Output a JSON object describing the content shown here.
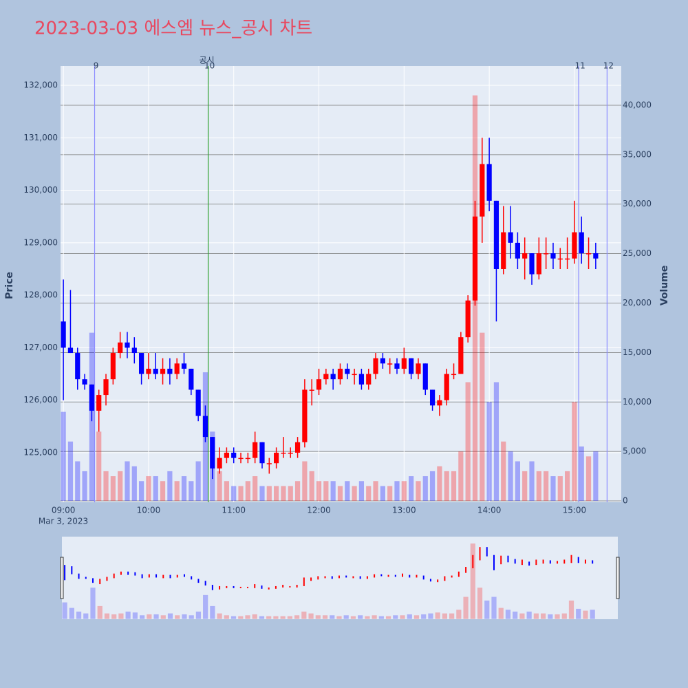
{
  "chart_data": {
    "type": "candlestick",
    "title": "2023-03-03 에스엠 뉴스_공시 차트",
    "y_label": "Price",
    "y2_label": "Volume",
    "date_label": "Mar 3, 2023",
    "up_color": "#ff0000",
    "down_color": "#0000ff",
    "x": [
      "09:00",
      "09:05",
      "09:10",
      "09:15",
      "09:20",
      "09:25",
      "09:30",
      "09:35",
      "09:40",
      "09:45",
      "09:50",
      "09:55",
      "10:00",
      "10:05",
      "10:10",
      "10:15",
      "10:20",
      "10:25",
      "10:30",
      "10:35",
      "10:40",
      "10:45",
      "10:50",
      "10:55",
      "11:00",
      "11:05",
      "11:10",
      "11:15",
      "11:20",
      "11:25",
      "11:30",
      "11:35",
      "11:40",
      "11:45",
      "11:50",
      "11:55",
      "12:00",
      "12:05",
      "12:10",
      "12:15",
      "12:20",
      "12:25",
      "12:30",
      "12:35",
      "12:40",
      "12:45",
      "12:50",
      "12:55",
      "13:00",
      "13:05",
      "13:10",
      "13:15",
      "13:20",
      "13:25",
      "13:30",
      "13:35",
      "13:40",
      "13:45",
      "13:50",
      "13:55",
      "14:00",
      "14:05",
      "14:10",
      "14:15",
      "14:20",
      "14:25",
      "14:30",
      "14:35",
      "14:40",
      "14:45",
      "14:50",
      "14:55",
      "15:00",
      "15:05",
      "15:10",
      "15:15"
    ],
    "open": [
      127500,
      127000,
      126900,
      126400,
      126300,
      125800,
      126100,
      126400,
      126900,
      127100,
      127000,
      126900,
      126500,
      126600,
      126500,
      126600,
      126500,
      126700,
      126600,
      126200,
      125700,
      125300,
      124700,
      124900,
      125000,
      124900,
      124900,
      124900,
      125200,
      124800,
      124800,
      125000,
      125000,
      125000,
      125200,
      126200,
      126200,
      126400,
      126500,
      126400,
      126600,
      126500,
      126500,
      126300,
      126500,
      126800,
      126700,
      126700,
      126600,
      126800,
      126500,
      126700,
      126200,
      125900,
      126000,
      126500,
      126500,
      127200,
      127900,
      129500,
      130500,
      129800,
      128500,
      129200,
      129000,
      128700,
      128800,
      128400,
      128800,
      128800,
      128700,
      128700,
      128700,
      129200,
      128800,
      128800
    ],
    "high": [
      128300,
      128100,
      127000,
      126500,
      126300,
      126200,
      126500,
      127000,
      127300,
      127300,
      127200,
      126900,
      126900,
      126900,
      126800,
      126800,
      126800,
      126900,
      126600,
      126200,
      125900,
      125300,
      125100,
      125100,
      125100,
      125000,
      125000,
      125400,
      125200,
      124900,
      125100,
      125300,
      125100,
      125300,
      126400,
      126400,
      126600,
      126600,
      126600,
      126700,
      126700,
      126600,
      126600,
      126600,
      126900,
      126900,
      126800,
      126800,
      127000,
      126800,
      126800,
      126700,
      126200,
      126100,
      126600,
      126700,
      127300,
      128000,
      129800,
      131000,
      131000,
      129800,
      129700,
      129700,
      129200,
      129100,
      128800,
      129100,
      129100,
      129000,
      128900,
      129100,
      129800,
      129500,
      129100,
      129000
    ],
    "low": [
      126000,
      126900,
      126200,
      126200,
      125600,
      125400,
      125900,
      126300,
      126800,
      126800,
      126700,
      126300,
      126400,
      126400,
      126300,
      126300,
      126400,
      126500,
      126100,
      125600,
      125200,
      124500,
      124600,
      124800,
      124800,
      124800,
      124800,
      124800,
      124700,
      124600,
      124700,
      124900,
      124900,
      124900,
      125100,
      125900,
      126100,
      126300,
      126200,
      126300,
      126400,
      126300,
      126200,
      126200,
      126400,
      126600,
      126500,
      126500,
      126500,
      126400,
      126400,
      126100,
      125800,
      125700,
      125900,
      126400,
      126500,
      127100,
      127800,
      129000,
      129600,
      127500,
      128400,
      128700,
      128500,
      128300,
      128200,
      128300,
      128500,
      128500,
      128500,
      128500,
      128600,
      128600,
      128500,
      128500
    ],
    "close": [
      127000,
      126900,
      126400,
      126300,
      125800,
      126100,
      126400,
      126900,
      127100,
      127000,
      126900,
      126500,
      126600,
      126500,
      126600,
      126500,
      126700,
      126600,
      126200,
      125700,
      125300,
      124700,
      124900,
      125000,
      124900,
      124900,
      124900,
      125200,
      124800,
      124800,
      125000,
      125000,
      125000,
      125200,
      126200,
      126200,
      126400,
      126500,
      126400,
      126600,
      126500,
      126500,
      126300,
      126500,
      126800,
      126700,
      126700,
      126600,
      126800,
      126500,
      126700,
      126200,
      125900,
      126000,
      126500,
      126500,
      127200,
      127900,
      129500,
      130500,
      129800,
      128500,
      129200,
      129000,
      128700,
      128800,
      128400,
      128800,
      128800,
      128700,
      128700,
      128700,
      129200,
      128800,
      128800,
      128700
    ],
    "volume": [
      9000,
      6000,
      4000,
      3000,
      17000,
      7000,
      3000,
      2500,
      3000,
      4000,
      3500,
      2000,
      2500,
      2500,
      2000,
      3000,
      2000,
      2500,
      2000,
      4000,
      13000,
      7000,
      3000,
      2000,
      1500,
      1500,
      2000,
      2500,
      1500,
      1500,
      1500,
      1500,
      1500,
      2000,
      4000,
      3000,
      2000,
      2000,
      2000,
      1500,
      2000,
      1500,
      2000,
      1500,
      2000,
      1500,
      1500,
      2000,
      2000,
      2500,
      2000,
      2500,
      3000,
      3500,
      3000,
      3000,
      5000,
      12000,
      41000,
      17000,
      10000,
      12000,
      6000,
      5000,
      4000,
      3000,
      4000,
      3000,
      3000,
      2500,
      2500,
      3000,
      10000,
      5500,
      4500,
      5000
    ],
    "xlim": [
      "08:58",
      "15:33"
    ],
    "xticks": [
      "09:00",
      "10:00",
      "11:00",
      "12:00",
      "13:00",
      "14:00",
      "15:00"
    ],
    "ylim": [
      124056,
      132367
    ],
    "yticks": [
      {
        "value": 125000,
        "label": "125,000"
      },
      {
        "value": 126000,
        "label": "126,000"
      },
      {
        "value": 127000,
        "label": "127,000"
      },
      {
        "value": 128000,
        "label": "128,000"
      },
      {
        "value": 129000,
        "label": "129,000"
      },
      {
        "value": 130000,
        "label": "130,000"
      },
      {
        "value": 131000,
        "label": "131,000"
      },
      {
        "value": 132000,
        "label": "132,000"
      }
    ],
    "y2lim": [
      -139,
      43965
    ],
    "y2ticks": [
      0,
      {
        "value": 5000,
        "label": "5,000"
      },
      {
        "value": 10000,
        "label": "10,000"
      },
      {
        "value": 15000,
        "label": "15,000"
      },
      {
        "value": 20000,
        "label": "20,000"
      },
      {
        "value": 25000,
        "label": "25,000"
      },
      {
        "value": 30000,
        "label": "30,000"
      },
      {
        "value": 35000,
        "label": "35,000"
      },
      {
        "value": 40000,
        "label": "40,000"
      }
    ],
    "events": [
      {
        "time": "09:22",
        "label": "9",
        "color": "#8c8cff"
      },
      {
        "time": "10:42",
        "label": "10",
        "color": "#2ca02c",
        "note": "공시"
      },
      {
        "time": "15:03",
        "label": "11",
        "color": "#8c8cff"
      },
      {
        "time": "15:23",
        "label": "12",
        "color": "#8c8cff"
      }
    ],
    "grid": true
  }
}
